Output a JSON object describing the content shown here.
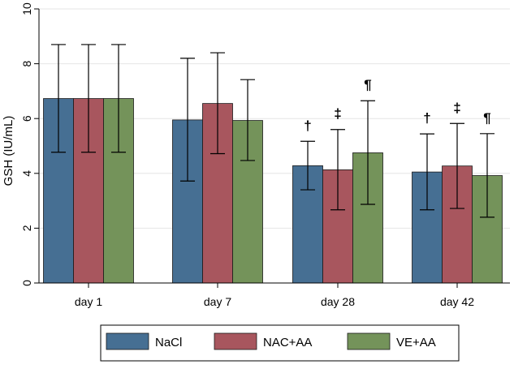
{
  "chart_data": {
    "type": "bar",
    "title": "",
    "xlabel": "",
    "ylabel": "GSH (IU/mL)",
    "ylim": [
      0,
      10
    ],
    "yticks": [
      0,
      2,
      4,
      6,
      8,
      10
    ],
    "grid": "horizontal",
    "legend_position": "bottom",
    "categories": [
      "day 1",
      "day 7",
      "day 28",
      "day 42"
    ],
    "series": [
      {
        "name": "NaCl",
        "color": "#466f93",
        "values": [
          6.73,
          5.95,
          4.28,
          4.05
        ],
        "error_low": [
          4.77,
          3.72,
          3.4,
          2.67
        ],
        "error_high": [
          8.7,
          8.2,
          5.17,
          5.44
        ],
        "annotations": [
          "",
          "",
          "†",
          "†"
        ]
      },
      {
        "name": "NAC+AA",
        "color": "#a8565e",
        "values": [
          6.73,
          6.55,
          4.13,
          4.27
        ],
        "error_low": [
          4.77,
          4.72,
          2.67,
          2.72
        ],
        "error_high": [
          8.7,
          8.4,
          5.6,
          5.82
        ],
        "annotations": [
          "",
          "",
          "‡",
          "‡"
        ]
      },
      {
        "name": "VE+AA",
        "color": "#74935a",
        "values": [
          6.73,
          5.93,
          4.75,
          3.92
        ],
        "error_low": [
          4.77,
          4.47,
          2.87,
          2.4
        ],
        "error_high": [
          8.7,
          7.42,
          6.65,
          5.45
        ],
        "annotations": [
          "",
          "",
          "¶",
          "¶"
        ]
      }
    ]
  }
}
